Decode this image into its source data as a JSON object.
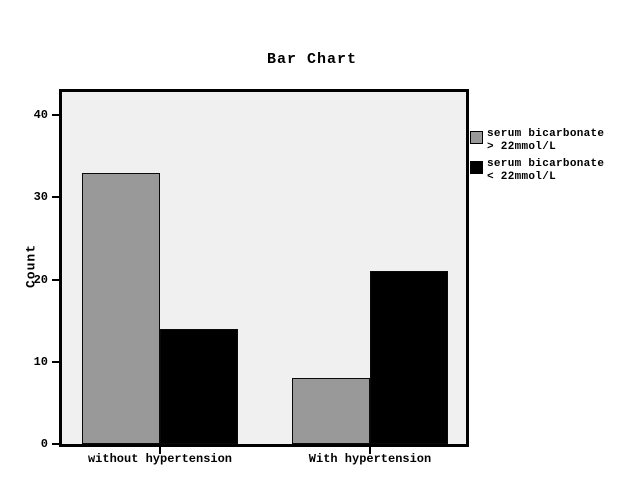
{
  "chart": {
    "title": "Bar Chart"
  },
  "chart_data": {
    "type": "bar",
    "title": "Bar Chart",
    "xlabel": "",
    "ylabel": "Count",
    "categories": [
      "without hypertension",
      "With hypertension"
    ],
    "series": [
      {
        "name": "serum bicarbonate > 22mmol/L",
        "color": "#999999",
        "values": [
          33,
          8
        ]
      },
      {
        "name": "serum bicarbonate < 22mmol/L",
        "color": "#000000",
        "values": [
          14,
          21
        ]
      }
    ],
    "legend": {
      "position": "right",
      "entries": [
        {
          "lines": [
            "serum bicarbonate",
            "> 22mmol/L"
          ],
          "color": "#999999"
        },
        {
          "lines": [
            "serum bicarbonate",
            "< 22mmol/L"
          ],
          "color": "#000000"
        }
      ]
    },
    "yticks": [
      0,
      10,
      20,
      30,
      40
    ],
    "ylim": [
      0,
      42.8
    ],
    "grid": false,
    "plot_bg_color": "#f0f0f0",
    "frame_color": "#000000"
  }
}
